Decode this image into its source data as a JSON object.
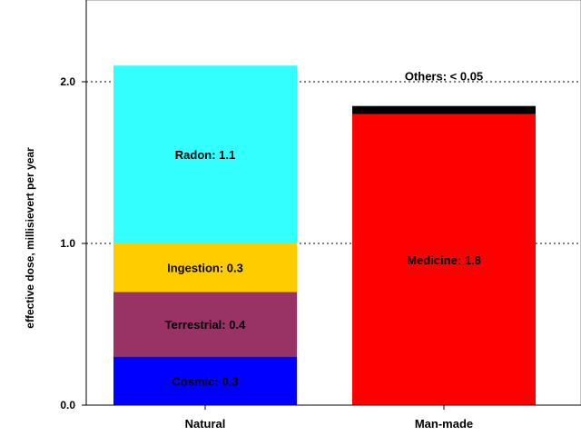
{
  "chart_data": {
    "type": "bar",
    "stacked": true,
    "ylabel": "effective dose, millisievert  per year",
    "ylim": [
      0,
      2.5
    ],
    "yticks": [
      {
        "value": 0.0,
        "label": "0.0"
      },
      {
        "value": 1.0,
        "label": "1.0"
      },
      {
        "value": 2.0,
        "label": "2.0"
      }
    ],
    "grid": "horizontal dotted",
    "categories": [
      "Natural",
      "Man-made"
    ],
    "bars": [
      {
        "category": "Natural",
        "segments": [
          {
            "label": "Cosmic: 0.3",
            "value": 0.3,
            "color": "#0000FF"
          },
          {
            "label": "Terrestrial: 0.4",
            "value": 0.4,
            "color": "#993366"
          },
          {
            "label": "Ingestion: 0.3",
            "value": 0.3,
            "color": "#FFCC00"
          },
          {
            "label": "Radon: 1.1",
            "value": 1.1,
            "color": "#33FFFF"
          }
        ]
      },
      {
        "category": "Man-made",
        "segments": [
          {
            "label": "Medicine: 1.8",
            "value": 1.8,
            "color": "#FF0000"
          },
          {
            "label": "Others: < 0.05",
            "value": 0.05,
            "color": "#000000",
            "label_outside": true
          }
        ]
      }
    ]
  }
}
